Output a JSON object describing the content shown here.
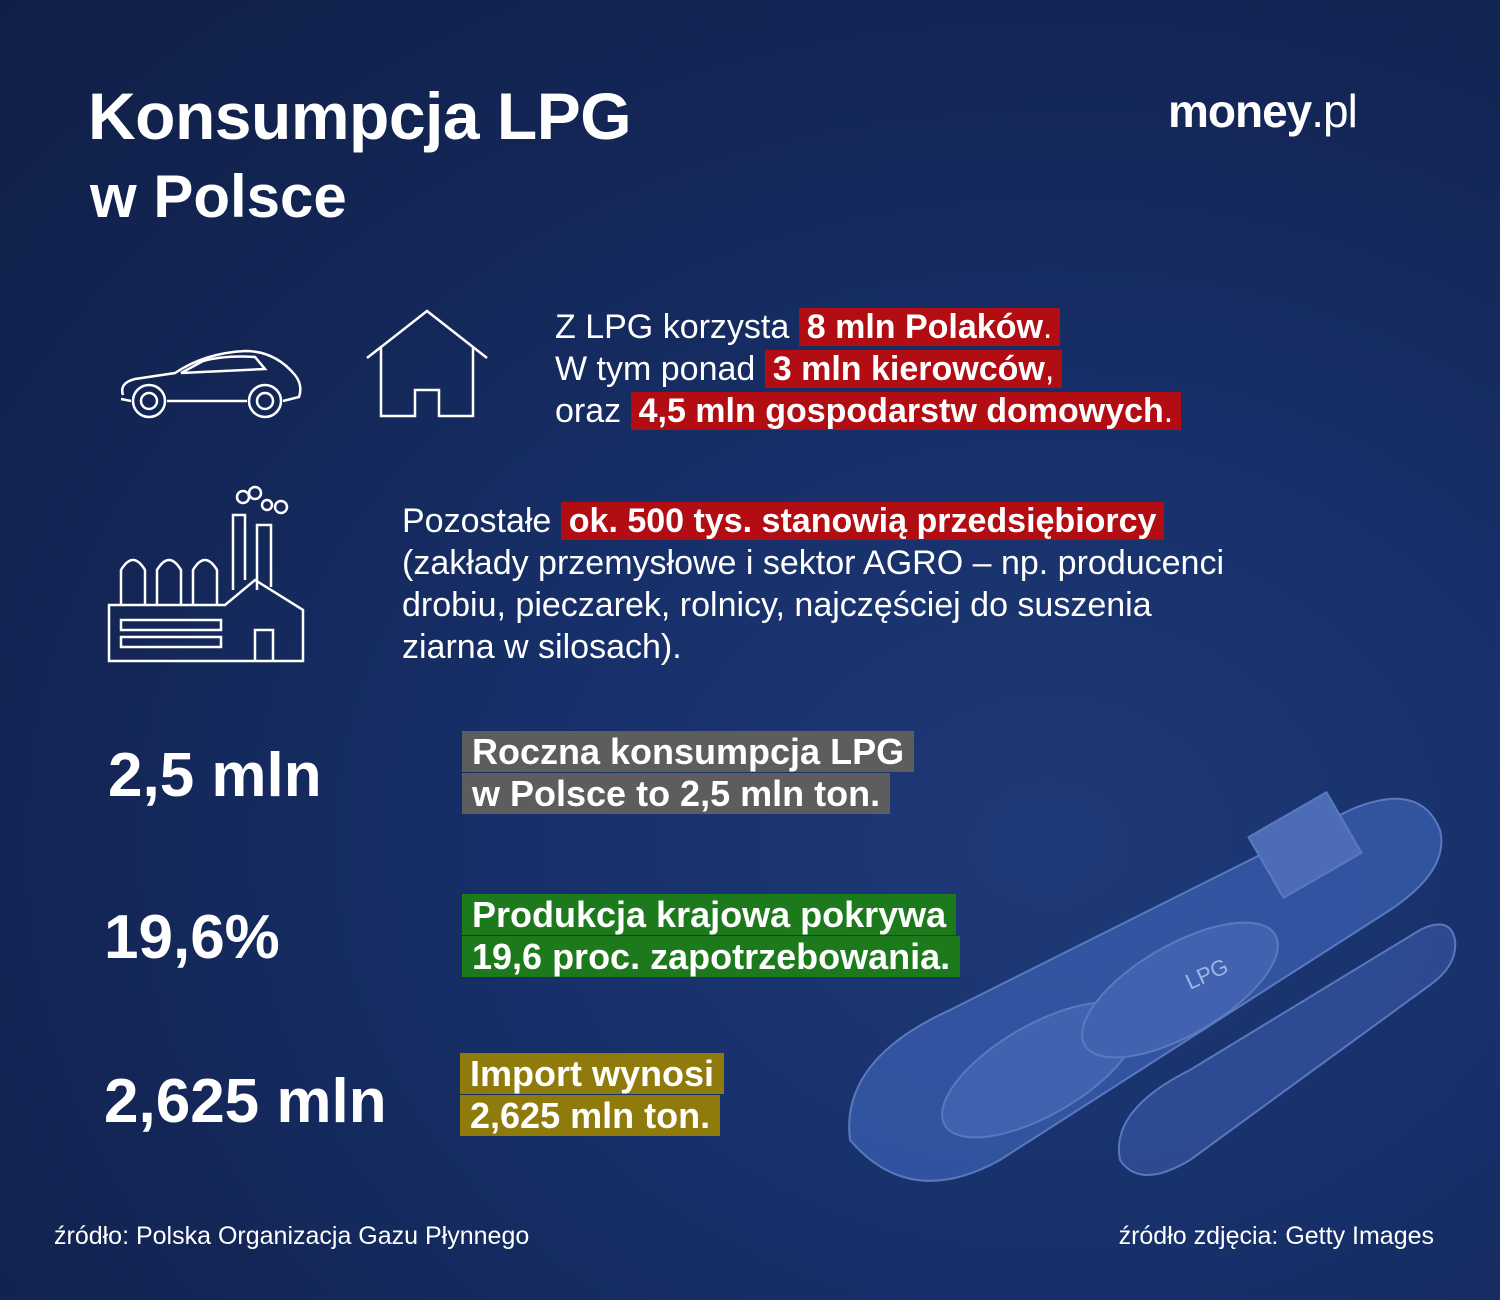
{
  "header": {
    "title": "Konsumpcja LPG",
    "subtitle": "w Polsce",
    "logo_main": "money",
    "logo_suffix": ".pl"
  },
  "users": {
    "line1_plain": "Z LPG korzysta",
    "line1_highlight": "8 mln Polaków",
    "line2_plain": "W tym ponad",
    "line2_highlight": "3 mln kierowców",
    "line3_plain": "oraz",
    "line3_highlight": "4,5 mln gospodarstw domowych",
    "period": ".",
    "comma": ",",
    "icons": [
      "car-icon",
      "house-icon"
    ]
  },
  "business": {
    "plain_start": "Pozostałe",
    "highlight": "ok. 500 tys. stanowią przedsiębiorcy",
    "lines": [
      "(zakłady przemysłowe i sektor AGRO – np. producenci",
      "drobiu, pieczarek, rolnicy, najczęściej do suszenia",
      "ziarna w silosach)."
    ],
    "icon": "factory-icon"
  },
  "stats": [
    {
      "value": "2,5 mln",
      "line1": "Roczna konsumpcja LPG",
      "line2": "w Polsce to 2,5 mln ton.",
      "color": "#5d5d5f"
    },
    {
      "value": "19,6%",
      "line1": "Produkcja krajowa pokrywa",
      "line2": "19,6 proc. zapotrzebowania.",
      "color": "#1c7a1c"
    },
    {
      "value": "2,625 mln",
      "line1": "Import wynosi",
      "line2": "2,625 mln ton.",
      "color": "#8f7a0c"
    }
  ],
  "colors": {
    "background": "#132656",
    "highlight_red": "#b30d14"
  },
  "ship_label": "LPG",
  "footer": {
    "source": "źródło: Polska Organizacja Gazu Płynnego",
    "photo_source": "źródło zdjęcia: Getty Images"
  }
}
